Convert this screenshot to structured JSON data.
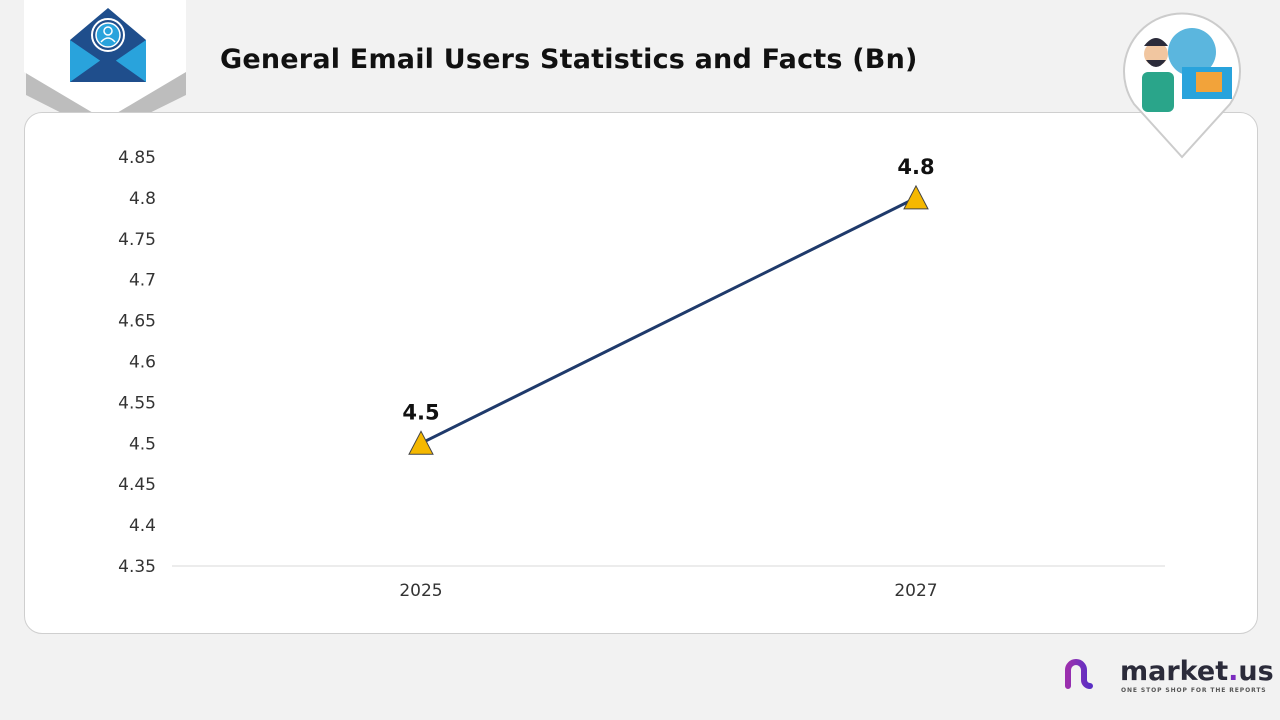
{
  "header": {
    "title": "General Email Users Statistics and Facts (Bn)"
  },
  "brand": {
    "name_main": "market",
    "name_dot": ".",
    "name_suffix": "us",
    "tagline": "ONE STOP SHOP FOR THE REPORTS"
  },
  "icons": {
    "badge": "email-user-icon",
    "illustration": "person-with-email-icon"
  },
  "colors": {
    "line": "#1f3a6b",
    "marker": "#f5b800",
    "accent": "#7b2cbf"
  },
  "chart_data": {
    "type": "line",
    "categories": [
      "2025",
      "2027"
    ],
    "series": [
      {
        "values": [
          4.5,
          4.8
        ]
      }
    ],
    "data_labels": [
      "4.5",
      "4.8"
    ],
    "ylim": [
      4.35,
      4.85
    ],
    "yticks": [
      "4.85",
      "4.8",
      "4.75",
      "4.7",
      "4.65",
      "4.6",
      "4.55",
      "4.5",
      "4.45",
      "4.4",
      "4.35"
    ],
    "marker": "triangle",
    "grid": false
  }
}
